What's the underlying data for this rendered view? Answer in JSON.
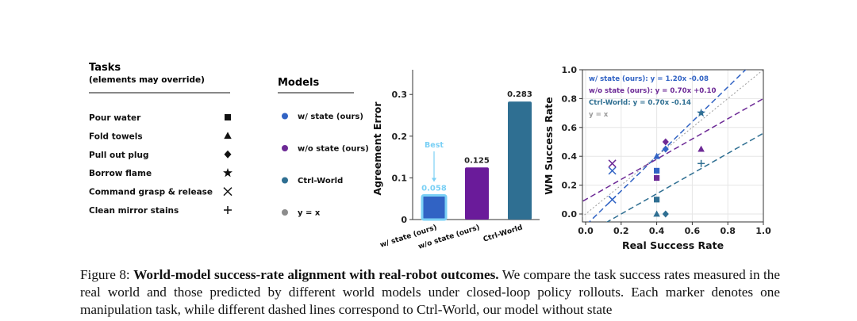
{
  "legends": {
    "tasks_title": "Tasks",
    "tasks_subtitle": "(elements may override)",
    "tasks": [
      {
        "label": "Pour water",
        "marker": "square"
      },
      {
        "label": "Fold towels",
        "marker": "triangle"
      },
      {
        "label": "Pull out plug",
        "marker": "diamond"
      },
      {
        "label": "Borrow flame",
        "marker": "star"
      },
      {
        "label": "Command grasp & release",
        "marker": "x"
      },
      {
        "label": "Clean mirror stains",
        "marker": "plus"
      }
    ],
    "models_title": "Models",
    "models": [
      {
        "label": "w/ state (ours)",
        "color": "#3163c4"
      },
      {
        "label": "w/o state (ours)",
        "color": "#6d2a96"
      },
      {
        "label": "Ctrl-World",
        "color": "#2f6f92"
      },
      {
        "label": "y = x",
        "color": "#8c8c8c"
      }
    ]
  },
  "chart_data": [
    {
      "type": "bar",
      "ylabel": "Agreement Error",
      "categories": [
        "w/ state (ours)",
        "w/o state (ours)",
        "Ctrl-World"
      ],
      "values": [
        0.058,
        0.125,
        0.283
      ],
      "value_labels": [
        "0.058",
        "0.125",
        "0.283"
      ],
      "colors": [
        "#3163c4",
        "#6a1b9a",
        "#2f6f92"
      ],
      "ylim": [
        0,
        0.35
      ],
      "yticks": [
        0,
        0.1,
        0.2,
        0.3
      ],
      "ytick_labels": [
        "0",
        "0.1",
        "0.2",
        "0.3"
      ],
      "highlight": {
        "index": 0,
        "label": "Best",
        "color": "#7ad0f5"
      }
    },
    {
      "type": "scatter",
      "xlabel": "Real Success Rate",
      "ylabel": "WM Success Rate",
      "xlim": [
        0,
        1
      ],
      "ylim": [
        -0.04,
        1.0
      ],
      "xticks": [
        0,
        0.2,
        0.4,
        0.6,
        0.8,
        1.0
      ],
      "xtick_labels": [
        "0.0",
        "0.2",
        "0.4",
        "0.6",
        "0.8",
        "1.0"
      ],
      "yticks": [
        0,
        0.2,
        0.4,
        0.6,
        0.8,
        1.0
      ],
      "ytick_labels": [
        "0.0",
        "0.2",
        "0.4",
        "0.6",
        "0.8",
        "1.0"
      ],
      "grid": true,
      "fit_lines": [
        {
          "label": "w/ state (ours): y = 1.20x -0.08",
          "slope": 1.2,
          "intercept": -0.08,
          "color": "#3163c4"
        },
        {
          "label": "w/o state (ours): y = 0.70x +0.10",
          "slope": 0.7,
          "intercept": 0.1,
          "color": "#6d2a96"
        },
        {
          "label": "Ctrl-World: y = 0.70x -0.14",
          "slope": 0.7,
          "intercept": -0.14,
          "color": "#2f6f92"
        },
        {
          "label": "y = x",
          "slope": 1.0,
          "intercept": 0.0,
          "color": "#9a9a9a",
          "dotted": true
        }
      ],
      "series": [
        {
          "name": "w/ state (ours)",
          "color": "#3163c4",
          "points": [
            {
              "x": 0.4,
              "y": 0.3,
              "marker": "square"
            },
            {
              "x": 0.4,
              "y": 0.4,
              "marker": "triangle"
            },
            {
              "x": 0.45,
              "y": 0.45,
              "marker": "diamond"
            },
            {
              "x": 0.65,
              "y": 0.7,
              "marker": "star"
            },
            {
              "x": 0.15,
              "y": 0.1,
              "marker": "x"
            },
            {
              "x": 0.15,
              "y": 0.3,
              "marker": "x"
            }
          ]
        },
        {
          "name": "w/o state (ours)",
          "color": "#6d2a96",
          "points": [
            {
              "x": 0.4,
              "y": 0.25,
              "marker": "square"
            },
            {
              "x": 0.45,
              "y": 0.5,
              "marker": "diamond"
            },
            {
              "x": 0.65,
              "y": 0.45,
              "marker": "triangle"
            },
            {
              "x": 0.15,
              "y": 0.35,
              "marker": "x"
            }
          ]
        },
        {
          "name": "Ctrl-World",
          "color": "#2f6f92",
          "points": [
            {
              "x": 0.4,
              "y": 0.1,
              "marker": "square"
            },
            {
              "x": 0.4,
              "y": 0.0,
              "marker": "triangle"
            },
            {
              "x": 0.45,
              "y": 0.0,
              "marker": "diamond"
            },
            {
              "x": 0.65,
              "y": 0.7,
              "marker": "star"
            },
            {
              "x": 0.65,
              "y": 0.35,
              "marker": "plus"
            }
          ]
        }
      ]
    }
  ],
  "caption": {
    "prefix": "Figure 8: ",
    "bold": "World-model success-rate alignment with real-robot outcomes.",
    "text": " We compare the task success rates measured in the real world and those predicted by different world models under closed-loop policy rollouts. Each marker denotes one manipulation task, while different dashed lines correspond to Ctrl-World, our model without state"
  }
}
